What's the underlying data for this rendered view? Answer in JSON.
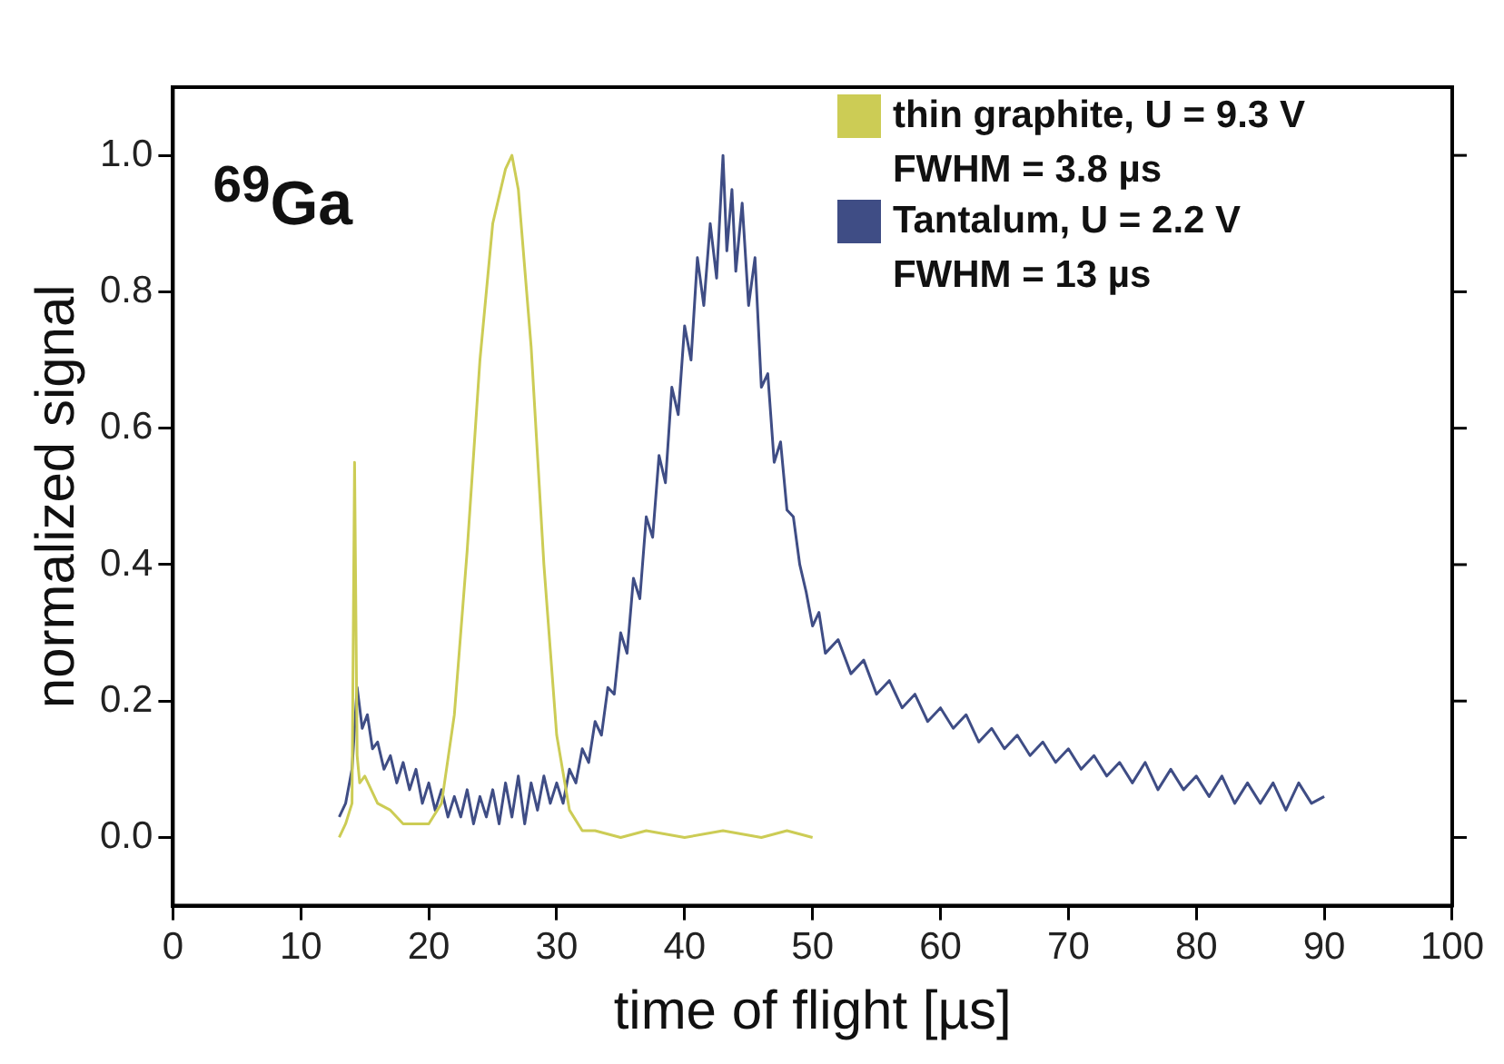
{
  "chart_data": {
    "type": "line",
    "xlabel": "time of flight [µs]",
    "ylabel": "normalized signal",
    "annotations": [
      "$^{69}$Ga",
      "FWHM = 3.8 µs",
      "FWHM = 13 µs"
    ],
    "xlim": [
      0,
      100
    ],
    "ylim": [
      -0.1,
      1.1
    ],
    "xticks": [
      0,
      10,
      20,
      30,
      40,
      50,
      60,
      70,
      80,
      90,
      100
    ],
    "yticks": [
      {
        "value": 0,
        "label": "0.0"
      },
      {
        "value": 0.2,
        "label": "0.2"
      },
      {
        "value": 0.4,
        "label": "0.4"
      },
      {
        "value": 0.6,
        "label": "0.6"
      },
      {
        "value": 0.8,
        "label": "0.8"
      },
      {
        "value": 1,
        "label": "1.0"
      }
    ],
    "legend": "top right",
    "grid": false,
    "marker": "none",
    "line_style": "solid",
    "series": [
      {
        "name": "thin graphite, U = 9.3 V",
        "color": "#cccc55",
        "x": [
          13,
          13.5,
          14,
          14.2,
          14.4,
          14.6,
          15,
          15.5,
          16,
          17,
          18,
          19,
          20,
          21,
          22,
          23,
          24,
          25,
          26,
          26.5,
          27,
          28,
          29,
          30,
          31,
          32,
          33,
          35,
          37,
          40,
          43,
          46,
          48,
          50
        ],
        "values": [
          0.0,
          0.02,
          0.05,
          0.55,
          0.12,
          0.08,
          0.09,
          0.07,
          0.05,
          0.04,
          0.02,
          0.02,
          0.02,
          0.05,
          0.18,
          0.42,
          0.7,
          0.9,
          0.98,
          1.0,
          0.95,
          0.72,
          0.4,
          0.15,
          0.04,
          0.01,
          0.01,
          0.0,
          0.01,
          0.0,
          0.01,
          0.0,
          0.01,
          0.0
        ]
      },
      {
        "name": "Tantalum, U = 2.2 V",
        "color": "#3f4d85",
        "x": [
          13,
          13.5,
          14,
          14.4,
          14.8,
          15.2,
          15.6,
          16,
          16.5,
          17,
          17.5,
          18,
          18.5,
          19,
          19.5,
          20,
          20.5,
          21,
          21.5,
          22,
          22.5,
          23,
          23.5,
          24,
          24.5,
          25,
          25.5,
          26,
          26.5,
          27,
          27.5,
          28,
          28.5,
          29,
          29.5,
          30,
          30.5,
          31,
          31.5,
          32,
          32.5,
          33,
          33.5,
          34,
          34.5,
          35,
          35.5,
          36,
          36.5,
          37,
          37.5,
          38,
          38.5,
          39,
          39.5,
          40,
          40.5,
          41,
          41.5,
          42,
          42.5,
          43,
          43.3,
          43.7,
          44,
          44.5,
          45,
          45.5,
          46,
          46.5,
          47,
          47.5,
          48,
          48.5,
          49,
          49.5,
          50,
          50.5,
          51,
          52,
          53,
          54,
          55,
          56,
          57,
          58,
          59,
          60,
          61,
          62,
          63,
          64,
          65,
          66,
          67,
          68,
          69,
          70,
          71,
          72,
          73,
          74,
          75,
          76,
          77,
          78,
          79,
          80,
          81,
          82,
          83,
          84,
          85,
          86,
          87,
          88,
          89,
          90
        ],
        "values": [
          0.03,
          0.05,
          0.1,
          0.22,
          0.16,
          0.18,
          0.13,
          0.14,
          0.1,
          0.12,
          0.08,
          0.11,
          0.07,
          0.1,
          0.05,
          0.08,
          0.04,
          0.07,
          0.03,
          0.06,
          0.03,
          0.07,
          0.02,
          0.06,
          0.03,
          0.07,
          0.02,
          0.08,
          0.03,
          0.09,
          0.02,
          0.08,
          0.04,
          0.09,
          0.05,
          0.08,
          0.05,
          0.1,
          0.08,
          0.13,
          0.11,
          0.17,
          0.15,
          0.22,
          0.21,
          0.3,
          0.27,
          0.38,
          0.35,
          0.47,
          0.44,
          0.56,
          0.52,
          0.66,
          0.62,
          0.75,
          0.7,
          0.85,
          0.78,
          0.9,
          0.82,
          1.0,
          0.86,
          0.95,
          0.83,
          0.93,
          0.78,
          0.85,
          0.66,
          0.68,
          0.55,
          0.58,
          0.48,
          0.47,
          0.4,
          0.36,
          0.31,
          0.33,
          0.27,
          0.29,
          0.24,
          0.26,
          0.21,
          0.23,
          0.19,
          0.21,
          0.17,
          0.19,
          0.16,
          0.18,
          0.14,
          0.16,
          0.13,
          0.15,
          0.12,
          0.14,
          0.11,
          0.13,
          0.1,
          0.12,
          0.09,
          0.11,
          0.08,
          0.11,
          0.07,
          0.1,
          0.07,
          0.09,
          0.06,
          0.09,
          0.05,
          0.08,
          0.05,
          0.08,
          0.04,
          0.08,
          0.05,
          0.06
        ]
      }
    ]
  }
}
